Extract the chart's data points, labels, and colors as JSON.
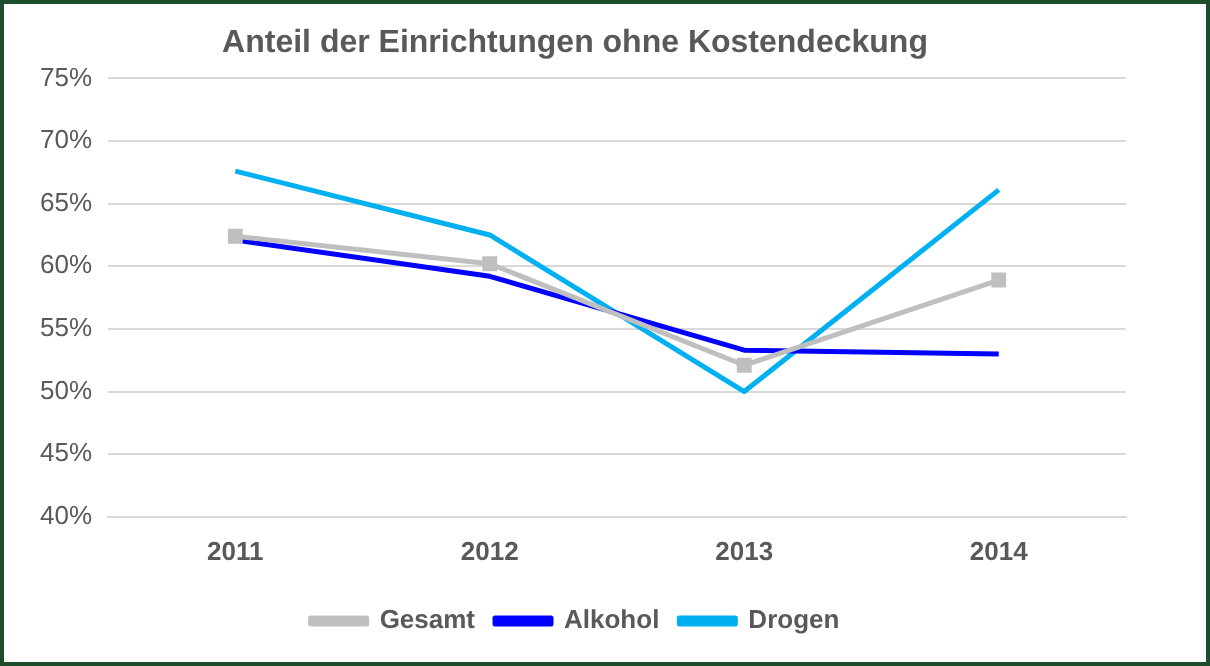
{
  "chart_data": {
    "type": "line",
    "title": "Anteil der Einrichtungen ohne Kostendeckung",
    "categories": [
      "2011",
      "2012",
      "2013",
      "2014"
    ],
    "series": [
      {
        "name": "Gesamt",
        "color": "#bfbfbf",
        "values": [
          62.4,
          60.2,
          52.1,
          58.9
        ],
        "marker": "square"
      },
      {
        "name": "Alkohol",
        "color": "#0000ff",
        "values": [
          62.1,
          59.2,
          53.3,
          53.0
        ],
        "marker": "none"
      },
      {
        "name": "Drogen",
        "color": "#00b0f0",
        "values": [
          67.6,
          62.5,
          50.0,
          66.1
        ],
        "marker": "none"
      }
    ],
    "ylim": [
      40,
      75
    ],
    "yticks": [
      {
        "value": 40,
        "label": "40%"
      },
      {
        "value": 45,
        "label": "45%"
      },
      {
        "value": 50,
        "label": "50%"
      },
      {
        "value": 55,
        "label": "55%"
      },
      {
        "value": 60,
        "label": "60%"
      },
      {
        "value": 65,
        "label": "65%"
      },
      {
        "value": 70,
        "label": "70%"
      },
      {
        "value": 75,
        "label": "75%"
      }
    ],
    "grid": "y",
    "legend": "bottom"
  }
}
